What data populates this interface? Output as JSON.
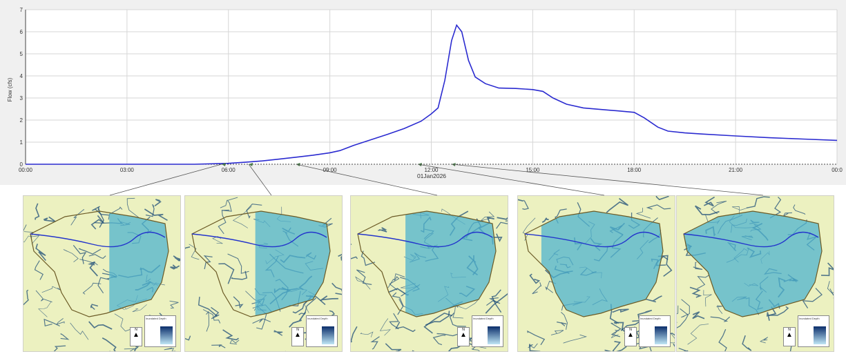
{
  "chart_data": {
    "type": "line",
    "ylabel": "Flow (cfs)",
    "date_label": "01Jan2026",
    "ylim": [
      0,
      7
    ],
    "xlim_hours": [
      0,
      24
    ],
    "yticks": [
      "0",
      "1",
      "2",
      "3",
      "4",
      "5",
      "6",
      "7"
    ],
    "xticks": [
      "00:00",
      "03:00",
      "06:00",
      "09:00",
      "12:00",
      "15:00",
      "18:00",
      "21:00",
      "00:0"
    ],
    "grid": true,
    "series": [
      {
        "color": "#2a2ad0",
        "x_hours": [
          0,
          5.0,
          6.0,
          6.5,
          7.0,
          7.5,
          8.0,
          8.5,
          9.0,
          9.3,
          9.7,
          10.2,
          10.7,
          11.2,
          11.7,
          12.0,
          12.2,
          12.4,
          12.6,
          12.75,
          12.9,
          13.1,
          13.3,
          13.6,
          14.0,
          14.5,
          15.0,
          15.3,
          15.6,
          16.0,
          16.5,
          17.0,
          17.5,
          18.0,
          18.3,
          18.7,
          19.0,
          19.5,
          20.0,
          21.0,
          22.0,
          23.0,
          24.0
        ],
        "flow_cfs": [
          0.0,
          0.0,
          0.04,
          0.09,
          0.15,
          0.23,
          0.32,
          0.41,
          0.52,
          0.62,
          0.85,
          1.1,
          1.35,
          1.62,
          1.95,
          2.28,
          2.55,
          3.8,
          5.6,
          6.3,
          6.0,
          4.7,
          3.95,
          3.65,
          3.45,
          3.43,
          3.38,
          3.3,
          3.0,
          2.72,
          2.55,
          2.48,
          2.42,
          2.35,
          2.1,
          1.68,
          1.5,
          1.42,
          1.37,
          1.28,
          1.2,
          1.14,
          1.08
        ]
      }
    ],
    "markers": [
      {
        "time": "06:00",
        "x_hours": 5.8,
        "panel": 1
      },
      {
        "time": "06:45",
        "x_hours": 6.6,
        "panel": 2
      },
      {
        "time": "08:00",
        "x_hours": 8.0,
        "panel": 3
      },
      {
        "time": "11:30",
        "x_hours": 11.6,
        "panel": 4
      },
      {
        "time": "12:30",
        "x_hours": 12.6,
        "panel": 5
      }
    ]
  },
  "colors": {
    "line": "#2a2ad0",
    "grid": "#d6d6d6",
    "axis": "#444444",
    "terrain": "#ecf1c0",
    "stream": "#1f4e78",
    "inundation": "#4fb3cf",
    "boundary": "#6b5a25"
  },
  "panels": [
    {
      "name": "map-06-00",
      "legend_title": "Inundated Depth",
      "north_label": "N",
      "inundation_fraction": 0.45
    },
    {
      "name": "map-06-45",
      "legend_title": "Inundated Depth",
      "north_label": "N",
      "inundation_fraction": 0.55
    },
    {
      "name": "map-08-00",
      "legend_title": "Inundated Depth",
      "north_label": "N",
      "inundation_fraction": 0.65
    },
    {
      "name": "map-11-30",
      "legend_title": "Inundated Depth",
      "north_label": "N",
      "inundation_fraction": 0.85
    },
    {
      "name": "map-12-30",
      "legend_title": "Inundated Depth",
      "north_label": "N",
      "inundation_fraction": 1.0
    }
  ]
}
